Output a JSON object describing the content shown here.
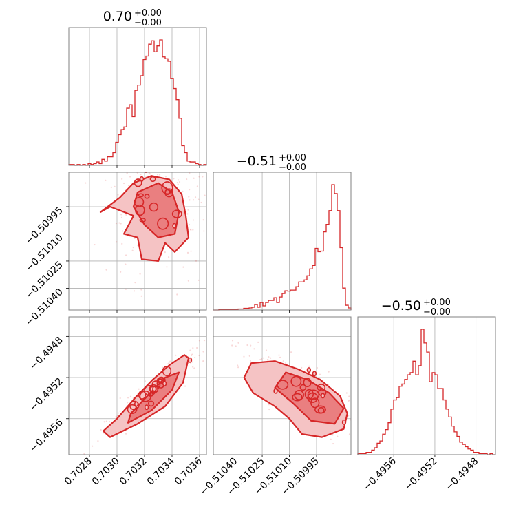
{
  "colors": {
    "accent": "#d62728",
    "fill_light": "#f5c3c4",
    "fill_mid": "#ea7f80",
    "grid": "#b0b0b0",
    "frame": "#808080"
  },
  "chart_data": {
    "type": "corner",
    "parameters": [
      {
        "title_value": "0.70",
        "title_plus": "+0.00",
        "title_minus": "−0.00",
        "range": [
          0.70265,
          0.70365
        ],
        "ticks": [
          0.7028,
          0.703,
          0.7032,
          0.7034,
          0.7036
        ],
        "tick_labels": [
          "0.7028",
          "0.7030",
          "0.7032",
          "0.7034",
          "0.7036"
        ],
        "histogram": [
          1,
          1,
          0,
          1,
          0,
          1,
          0,
          2,
          1,
          2,
          4,
          2,
          7,
          5,
          10,
          10,
          15,
          27,
          36,
          42,
          45,
          67,
          71,
          57,
          88,
          94,
          105,
          124,
          128,
          142,
          146,
          133,
          140,
          147,
          127,
          125,
          122,
          102,
          90,
          77,
          55,
          23,
          15,
          5,
          4,
          4,
          2,
          1,
          0,
          1
        ]
      },
      {
        "title_value": "−0.51",
        "title_plus": "+0.00",
        "title_minus": "−0.00",
        "range": [
          -0.51052,
          -0.50976
        ],
        "ticks": [
          -0.5104,
          -0.51025,
          -0.5101,
          -0.50995
        ],
        "tick_labels": [
          "−0.51040",
          "−0.51025",
          "−0.51010",
          "−0.50995"
        ],
        "histogram": [
          0,
          0,
          1,
          1,
          1,
          1,
          1,
          2,
          2,
          3,
          3,
          5,
          5,
          6,
          8,
          16,
          8,
          22,
          12,
          22,
          28,
          28,
          36,
          22,
          38,
          48,
          56,
          55,
          58,
          58,
          68,
          82,
          82,
          88,
          100,
          120,
          130,
          180,
          170,
          172,
          228,
          250,
          290,
          366,
          340,
          290,
          182,
          64,
          14,
          6
        ]
      },
      {
        "title_value": "−0.50",
        "title_plus": "+0.00",
        "title_minus": "−0.00",
        "range": [
          -0.49595,
          -0.49461
        ],
        "ticks": [
          -0.4956,
          -0.4952,
          -0.4948
        ],
        "tick_labels": [
          "−0.4956",
          "−0.4952",
          "−0.4948"
        ],
        "histogram": [
          1,
          1,
          1,
          2,
          2,
          4,
          6,
          10,
          12,
          18,
          22,
          28,
          40,
          48,
          50,
          60,
          62,
          66,
          70,
          72,
          82,
          70,
          78,
          110,
          98,
          90,
          64,
          72,
          70,
          58,
          58,
          48,
          40,
          33,
          25,
          20,
          16,
          11,
          9,
          7,
          5,
          4,
          2,
          2,
          1,
          1,
          1,
          0,
          1,
          0
        ]
      }
    ],
    "pairs": [
      {
        "row": 1,
        "col": 0,
        "x_param": 0,
        "y_param": 1,
        "mean": [
          0.70328,
          -0.50993
        ],
        "std": [
          0.00012,
          0.00012
        ],
        "corr": 0.0,
        "rim": [
          -0.50979,
          0.70325,
          0.00018
        ],
        "outer": [
          [
            0.70302,
            -0.5099
          ],
          [
            0.70312,
            -0.50982
          ],
          [
            0.70325,
            -0.50978
          ],
          [
            0.70338,
            -0.5098
          ],
          [
            0.70347,
            -0.50988
          ],
          [
            0.7035,
            -0.51
          ],
          [
            0.70352,
            -0.51012
          ],
          [
            0.70342,
            -0.5102
          ],
          [
            0.70335,
            -0.51015
          ],
          [
            0.7033,
            -0.51025
          ],
          [
            0.70318,
            -0.51024
          ],
          [
            0.70315,
            -0.51012
          ],
          [
            0.70305,
            -0.5101
          ],
          [
            0.70312,
            -0.51
          ],
          [
            0.70295,
            -0.50995
          ],
          [
            0.70288,
            -0.50998
          ]
        ],
        "inner": [
          [
            0.70315,
            -0.50987
          ],
          [
            0.7033,
            -0.50982
          ],
          [
            0.7034,
            -0.50987
          ],
          [
            0.70345,
            -0.50998
          ],
          [
            0.70342,
            -0.5101
          ],
          [
            0.7033,
            -0.51012
          ],
          [
            0.7032,
            -0.51005
          ],
          [
            0.70312,
            -0.50995
          ]
        ]
      },
      {
        "row": 2,
        "col": 0,
        "x_param": 0,
        "y_param": 2,
        "mean": [
          0.70326,
          -0.49533
        ],
        "std": [
          0.00011,
          0.00013
        ],
        "corr": 0.93,
        "rim": null,
        "outer": [
          [
            0.70295,
            -0.49578
          ],
          [
            0.70315,
            -0.49565
          ],
          [
            0.70335,
            -0.49548
          ],
          [
            0.70348,
            -0.49525
          ],
          [
            0.70352,
            -0.49501
          ],
          [
            0.70349,
            -0.49498
          ],
          [
            0.70338,
            -0.49508
          ],
          [
            0.70326,
            -0.49522
          ],
          [
            0.70313,
            -0.4954
          ],
          [
            0.703,
            -0.4956
          ],
          [
            0.7029,
            -0.49572
          ]
        ],
        "inner": [
          [
            0.70308,
            -0.49564
          ],
          [
            0.70325,
            -0.49552
          ],
          [
            0.7034,
            -0.49532
          ],
          [
            0.70345,
            -0.49515
          ],
          [
            0.70335,
            -0.4952
          ],
          [
            0.70322,
            -0.49538
          ],
          [
            0.7031,
            -0.49555
          ]
        ]
      },
      {
        "row": 2,
        "col": 1,
        "x_param": 1,
        "y_param": 2,
        "mean": [
          -0.51,
          -0.49537
        ],
        "std": [
          0.00012,
          0.00015
        ],
        "corr": -0.8,
        "rim": [
          -0.50982,
          -0.49555,
          0.00014
        ],
        "outer": [
          [
            -0.51031,
            -0.49506
          ],
          [
            -0.51018,
            -0.49504
          ],
          [
            -0.51005,
            -0.49512
          ],
          [
            -0.50993,
            -0.49522
          ],
          [
            -0.50982,
            -0.49538
          ],
          [
            -0.50978,
            -0.49555
          ],
          [
            -0.5098,
            -0.4957
          ],
          [
            -0.50992,
            -0.49578
          ],
          [
            -0.51003,
            -0.49575
          ],
          [
            -0.5101,
            -0.4956
          ],
          [
            -0.51018,
            -0.49548
          ],
          [
            -0.5103,
            -0.49535
          ],
          [
            -0.51035,
            -0.4952
          ]
        ],
        "inner": [
          [
            -0.51012,
            -0.49515
          ],
          [
            -0.51,
            -0.49522
          ],
          [
            -0.50988,
            -0.49535
          ],
          [
            -0.5098,
            -0.4955
          ],
          [
            -0.50985,
            -0.49565
          ],
          [
            -0.50998,
            -0.49562
          ],
          [
            -0.51008,
            -0.49545
          ],
          [
            -0.51018,
            -0.4953
          ]
        ]
      }
    ],
    "grid": true
  }
}
